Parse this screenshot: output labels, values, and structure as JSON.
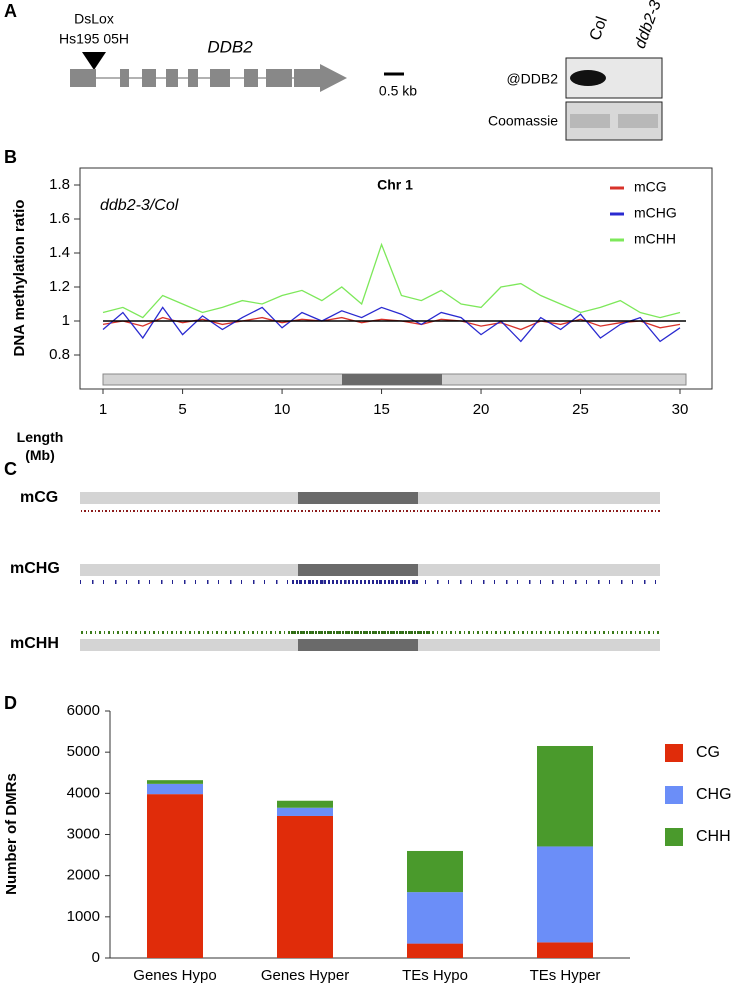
{
  "figure": {
    "panel_labels": [
      "A",
      "B",
      "C",
      "D"
    ],
    "gene_diagram": {
      "insertion": [
        "DsLox",
        "Hs195 05H"
      ],
      "gene": "DDB2",
      "scale": "0.5 kb"
    },
    "blot": {
      "lanes": [
        "Col",
        "ddb2-3"
      ],
      "rows": [
        "@DDB2",
        "Coomassie"
      ]
    },
    "dmr_tracks": [
      "mCG",
      "mCHG",
      "mCHH"
    ]
  },
  "chart_data": [
    {
      "type": "line",
      "title": "Chr 1",
      "annotation": "ddb2-3/Col",
      "ylabel": "DNA methylation ratio",
      "xlabel": "Length (Mb)",
      "x": [
        1,
        2,
        3,
        4,
        5,
        6,
        7,
        8,
        9,
        10,
        11,
        12,
        13,
        14,
        15,
        16,
        17,
        18,
        19,
        20,
        21,
        22,
        23,
        24,
        25,
        26,
        27,
        28,
        29,
        30
      ],
      "series": [
        {
          "name": "mCG",
          "color": "#d8322a",
          "values": [
            0.98,
            1.0,
            0.97,
            1.02,
            0.99,
            1.01,
            0.98,
            1.0,
            1.02,
            0.99,
            1.01,
            1.0,
            1.02,
            0.99,
            1.01,
            1.0,
            0.98,
            1.01,
            1.0,
            0.97,
            0.99,
            0.95,
            1.0,
            0.98,
            1.01,
            0.97,
            0.99,
            1.0,
            0.96,
            0.98
          ]
        },
        {
          "name": "mCHG",
          "color": "#2a2ad0",
          "values": [
            0.95,
            1.05,
            0.9,
            1.08,
            0.92,
            1.03,
            0.95,
            1.02,
            1.08,
            0.96,
            1.05,
            1.0,
            1.06,
            1.02,
            1.08,
            1.04,
            0.98,
            1.05,
            1.02,
            0.92,
            1.0,
            0.88,
            1.02,
            0.95,
            1.04,
            0.9,
            0.98,
            1.02,
            0.88,
            0.96
          ]
        },
        {
          "name": "mCHH",
          "color": "#7de85a",
          "values": [
            1.05,
            1.08,
            1.02,
            1.15,
            1.1,
            1.05,
            1.08,
            1.12,
            1.1,
            1.15,
            1.18,
            1.12,
            1.2,
            1.1,
            1.45,
            1.15,
            1.12,
            1.18,
            1.1,
            1.08,
            1.2,
            1.22,
            1.15,
            1.1,
            1.05,
            1.08,
            1.12,
            1.05,
            1.02,
            1.05
          ]
        }
      ],
      "xlim": [
        1,
        30
      ],
      "xticks": [
        1,
        5,
        10,
        15,
        20,
        25,
        30
      ],
      "ylim": [
        0.6,
        1.9
      ],
      "yticks": [
        0.8,
        1.0,
        1.2,
        1.4,
        1.6,
        1.8
      ],
      "legend": "top-right"
    },
    {
      "type": "stacked-bar",
      "ylabel": "Number of DMRs",
      "categories": [
        "Genes Hypo",
        "Genes Hyper",
        "TEs Hypo",
        "TEs Hyper"
      ],
      "series": [
        {
          "name": "CG",
          "color": "#e02c0a",
          "values": [
            3980,
            3450,
            350,
            380
          ]
        },
        {
          "name": "CHG",
          "color": "#6b8ef8",
          "values": [
            250,
            200,
            1250,
            2330
          ]
        },
        {
          "name": "CHH",
          "color": "#4a9a2c",
          "values": [
            90,
            170,
            1000,
            2440
          ]
        }
      ],
      "ylim": [
        0,
        6000
      ],
      "yticks": [
        0,
        1000,
        2000,
        3000,
        4000,
        5000,
        6000
      ],
      "legend": "right"
    }
  ]
}
